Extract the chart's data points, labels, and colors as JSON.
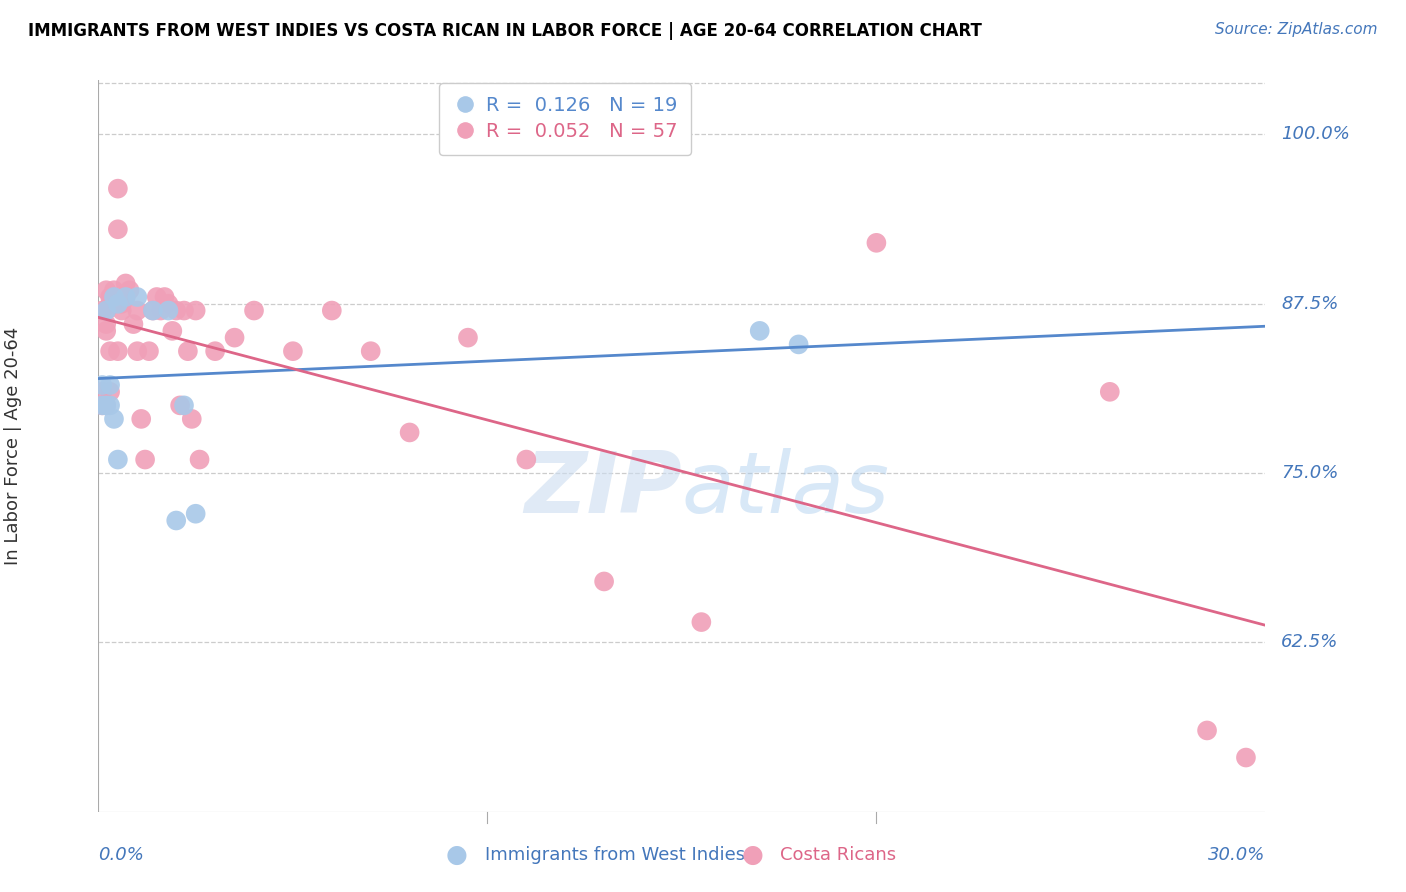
{
  "title": "IMMIGRANTS FROM WEST INDIES VS COSTA RICAN IN LABOR FORCE | AGE 20-64 CORRELATION CHART",
  "source": "Source: ZipAtlas.com",
  "ylabel": "In Labor Force | Age 20-64",
  "yticks": [
    0.625,
    0.75,
    0.875,
    1.0
  ],
  "ytick_labels": [
    "62.5%",
    "75.0%",
    "87.5%",
    "100.0%"
  ],
  "ymin": 0.5,
  "ymax": 1.04,
  "xmin": 0.0,
  "xmax": 0.3,
  "legend1_R": "0.126",
  "legend1_N": "19",
  "legend2_R": "0.052",
  "legend2_N": "57",
  "blue_color": "#a8c8e8",
  "pink_color": "#f0a0b8",
  "blue_line_color": "#5588cc",
  "pink_line_color": "#dd6688",
  "axis_color": "#4477bb",
  "blue_x": [
    0.001,
    0.001,
    0.002,
    0.002,
    0.003,
    0.003,
    0.004,
    0.004,
    0.005,
    0.005,
    0.007,
    0.01,
    0.014,
    0.018,
    0.02,
    0.022,
    0.025,
    0.17,
    0.18
  ],
  "blue_y": [
    0.8,
    0.815,
    0.8,
    0.87,
    0.8,
    0.815,
    0.79,
    0.88,
    0.875,
    0.76,
    0.88,
    0.88,
    0.87,
    0.87,
    0.715,
    0.8,
    0.72,
    0.855,
    0.845
  ],
  "pink_x": [
    0.001,
    0.001,
    0.001,
    0.002,
    0.002,
    0.002,
    0.002,
    0.002,
    0.003,
    0.003,
    0.003,
    0.003,
    0.004,
    0.004,
    0.004,
    0.005,
    0.005,
    0.005,
    0.006,
    0.006,
    0.007,
    0.007,
    0.008,
    0.009,
    0.01,
    0.01,
    0.011,
    0.012,
    0.013,
    0.014,
    0.015,
    0.016,
    0.017,
    0.018,
    0.019,
    0.02,
    0.021,
    0.022,
    0.023,
    0.024,
    0.025,
    0.026,
    0.03,
    0.035,
    0.04,
    0.05,
    0.06,
    0.07,
    0.08,
    0.095,
    0.11,
    0.13,
    0.155,
    0.2,
    0.26,
    0.285,
    0.295
  ],
  "pink_y": [
    0.8,
    0.87,
    0.81,
    0.8,
    0.87,
    0.86,
    0.855,
    0.885,
    0.88,
    0.875,
    0.84,
    0.81,
    0.885,
    0.88,
    0.875,
    0.93,
    0.96,
    0.84,
    0.875,
    0.87,
    0.89,
    0.88,
    0.885,
    0.86,
    0.84,
    0.87,
    0.79,
    0.76,
    0.84,
    0.87,
    0.88,
    0.87,
    0.88,
    0.875,
    0.855,
    0.87,
    0.8,
    0.87,
    0.84,
    0.79,
    0.87,
    0.76,
    0.84,
    0.85,
    0.87,
    0.84,
    0.87,
    0.84,
    0.78,
    0.85,
    0.76,
    0.67,
    0.64,
    0.92,
    0.81,
    0.56,
    0.54
  ]
}
